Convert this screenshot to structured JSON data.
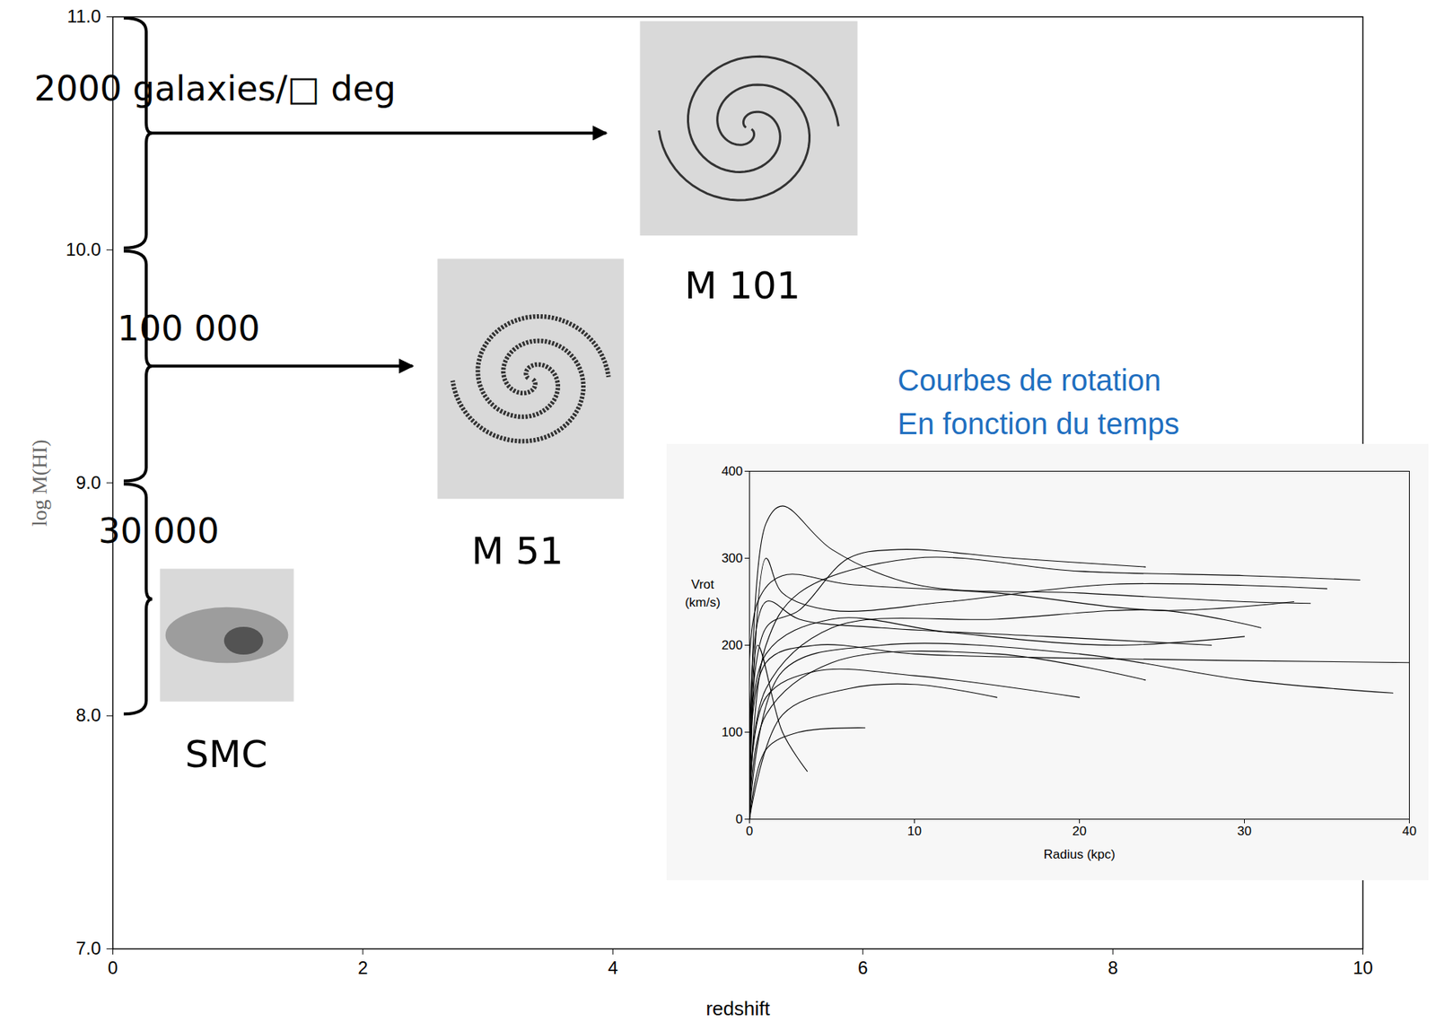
{
  "chart_data": [
    {
      "type": "axes",
      "x_label": "redshift",
      "y_label": "log M(HI)",
      "xlim": [
        0,
        10
      ],
      "xticks": [
        0,
        2,
        4,
        6,
        8,
        10
      ],
      "ylim": [
        7,
        11
      ],
      "yticks": [
        7,
        8,
        9,
        10,
        11
      ],
      "brackets": [
        {
          "range": [
            10,
            11
          ],
          "text": "2000 galaxies/□ deg"
        },
        {
          "range": [
            9,
            10
          ],
          "text": "100 000"
        },
        {
          "range": [
            8,
            9
          ],
          "text": "30 000"
        }
      ],
      "annotations": [
        "M 101",
        "M 51",
        "SMC"
      ]
    },
    {
      "type": "line",
      "title": "Courbes de rotation",
      "subtitle": "En fonction du temps",
      "x_label": "Radius (kpc)",
      "y_label": "Vrot (km/s)",
      "xlim": [
        0,
        40
      ],
      "xticks": [
        0,
        10,
        20,
        30,
        40
      ],
      "ylim": [
        0,
        400
      ],
      "yticks": [
        0,
        100,
        200,
        300,
        400
      ],
      "color": "#000000",
      "series": [
        {
          "x": [
            0,
            1,
            3,
            10,
            20,
            30,
            37
          ],
          "values": [
            0,
            200,
            260,
            300,
            285,
            280,
            275
          ]
        },
        {
          "x": [
            0,
            1,
            2,
            5,
            10,
            20,
            30,
            34
          ],
          "values": [
            0,
            340,
            360,
            310,
            270,
            260,
            250,
            248
          ]
        },
        {
          "x": [
            0,
            0.5,
            2,
            6,
            15,
            25,
            33
          ],
          "values": [
            0,
            250,
            280,
            270,
            260,
            240,
            250
          ]
        },
        {
          "x": [
            0,
            1,
            5,
            15,
            25,
            31
          ],
          "values": [
            0,
            150,
            220,
            230,
            240,
            220
          ]
        },
        {
          "x": [
            0,
            1,
            4,
            10,
            20,
            40
          ],
          "values": [
            0,
            180,
            200,
            190,
            185,
            180
          ]
        },
        {
          "x": [
            0,
            2,
            8,
            20,
            30,
            39
          ],
          "values": [
            0,
            170,
            200,
            190,
            160,
            145
          ]
        },
        {
          "x": [
            0,
            1,
            5,
            15,
            24
          ],
          "values": [
            0,
            120,
            180,
            190,
            160
          ]
        },
        {
          "x": [
            0,
            1,
            3,
            7
          ],
          "values": [
            0,
            80,
            100,
            105
          ]
        },
        {
          "x": [
            0,
            0.5,
            2,
            3.5
          ],
          "values": [
            0,
            200,
            100,
            55
          ]
        },
        {
          "x": [
            0,
            1,
            4,
            10,
            20
          ],
          "values": [
            0,
            140,
            170,
            165,
            140
          ]
        },
        {
          "x": [
            0,
            1,
            3,
            8,
            18,
            28
          ],
          "values": [
            0,
            250,
            230,
            220,
            210,
            200
          ]
        },
        {
          "x": [
            0,
            1,
            2,
            5,
            12,
            22,
            35
          ],
          "values": [
            0,
            300,
            260,
            240,
            250,
            270,
            265
          ]
        },
        {
          "x": [
            0,
            2,
            6,
            10,
            15
          ],
          "values": [
            0,
            120,
            150,
            155,
            140
          ]
        },
        {
          "x": [
            0,
            1,
            3,
            6,
            9,
            16,
            24
          ],
          "values": [
            0,
            220,
            240,
            300,
            310,
            300,
            290
          ]
        },
        {
          "x": [
            0,
            1,
            5,
            12,
            22,
            30
          ],
          "values": [
            0,
            190,
            230,
            215,
            200,
            210
          ]
        }
      ]
    }
  ]
}
